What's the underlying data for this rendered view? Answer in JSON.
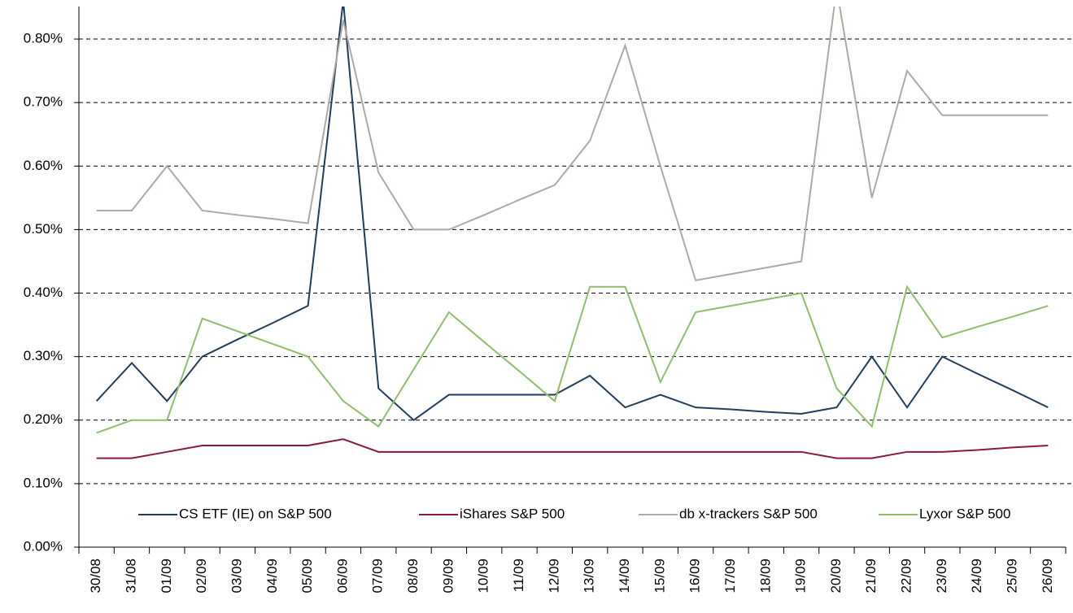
{
  "chart_data": {
    "type": "line",
    "categories": [
      "30/08",
      "31/08",
      "01/09",
      "02/09",
      "03/09",
      "04/09",
      "05/09",
      "06/09",
      "07/09",
      "08/09",
      "09/09",
      "10/09",
      "11/09",
      "12/09",
      "13/09",
      "14/09",
      "15/09",
      "16/09",
      "17/09",
      "18/09",
      "19/09",
      "20/09",
      "21/09",
      "22/09",
      "23/09",
      "24/09",
      "25/09",
      "26/09"
    ],
    "series": [
      {
        "name": "CS ETF (IE) on S&P 500",
        "color": "#1f3d5c",
        "values": [
          0.23,
          0.29,
          0.23,
          0.3,
          0.327,
          0.353,
          0.38,
          0.86,
          0.25,
          0.2,
          0.24,
          0.24,
          0.24,
          0.24,
          0.27,
          0.22,
          0.24,
          0.22,
          0.217,
          0.213,
          0.21,
          0.22,
          0.3,
          0.22,
          0.3,
          0.273,
          0.247,
          0.22
        ]
      },
      {
        "name": "iShares S&P 500",
        "color": "#8b1a3a",
        "values": [
          0.14,
          0.14,
          0.15,
          0.16,
          0.16,
          0.16,
          0.16,
          0.17,
          0.15,
          0.15,
          0.15,
          0.15,
          0.15,
          0.15,
          0.15,
          0.15,
          0.15,
          0.15,
          0.15,
          0.15,
          0.15,
          0.14,
          0.14,
          0.15,
          0.15,
          0.153,
          0.157,
          0.16
        ]
      },
      {
        "name": "db x-trackers S&P 500",
        "color": "#b0a8a0",
        "values": [
          0.53,
          0.53,
          0.6,
          0.53,
          0.523,
          0.517,
          0.51,
          0.83,
          0.59,
          0.5,
          0.5,
          0.523,
          0.547,
          0.57,
          0.64,
          0.79,
          0.6,
          0.42,
          0.43,
          0.44,
          0.45,
          0.88,
          0.55,
          0.75,
          0.68,
          0.68,
          0.68,
          0.68
        ]
      },
      {
        "name": "Lyxor S&P 500",
        "color": "#8dbf6a",
        "values": [
          0.18,
          0.2,
          0.2,
          0.36,
          0.34,
          0.32,
          0.3,
          0.23,
          0.19,
          0.28,
          0.37,
          0.323,
          0.277,
          0.23,
          0.41,
          0.41,
          0.26,
          0.37,
          0.38,
          0.39,
          0.4,
          0.25,
          0.19,
          0.41,
          0.33,
          0.347,
          0.363,
          0.38
        ]
      }
    ],
    "ylim": [
      0,
      0.85
    ],
    "yticks": [
      {
        "value": 0,
        "label": "0.00%"
      },
      {
        "value": 0.1,
        "label": "0.10%"
      },
      {
        "value": 0.2,
        "label": "0.20%"
      },
      {
        "value": 0.3,
        "label": "0.30%"
      },
      {
        "value": 0.4,
        "label": "0.40%"
      },
      {
        "value": 0.5,
        "label": "0.50%"
      },
      {
        "value": 0.6,
        "label": "0.60%"
      },
      {
        "value": 0.7,
        "label": "0.70%"
      },
      {
        "value": 0.8,
        "label": "0.80%"
      }
    ],
    "grid": true,
    "legend": "bottom"
  }
}
